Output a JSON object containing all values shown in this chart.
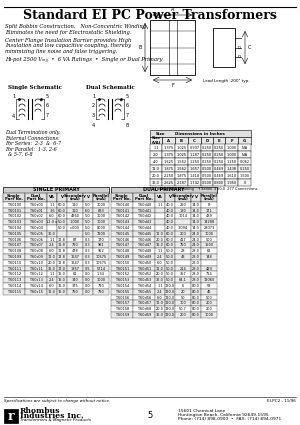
{
  "title": "Standard EI PC Power Transformers",
  "bg_color": "#ffffff",
  "subtitle_lines": [
    "Split Bobbin Construction,   Non-Concentric Winding",
    "Eliminates the need for Electrostatic Shielding.",
    "Center Flange Insulation Barrier provides High",
    "Insulation and low capacitive coupling, thereby",
    "minimizing line noise and false triggering.",
    "Hi-pot 2500 Vₘⱼⱼ  •  6 VA Ratings  •  Single or Dual Primary"
  ],
  "dual_terminal_note": [
    "Dual Termination only.",
    "External Connections:",
    "For Series:  2-3  &  6-7",
    "For Parallel:  1-3, 2-6",
    "  & 5-7, 6-8"
  ],
  "dim_table_rows": [
    [
      "1.1",
      "1.375",
      "1.025",
      "0.937",
      "0.250",
      "0.250",
      "1.000",
      "N/A"
    ],
    [
      "2.0",
      "1.375",
      "1.025",
      "1.187",
      "0.250",
      "0.250",
      "1.000",
      "N/A"
    ],
    [
      "4.0",
      "1.625",
      "1.562",
      "1.250",
      "0.250",
      "0.250",
      "1.250",
      "0.062"
    ],
    [
      "12.0",
      "1.875",
      "1.562",
      "1.657",
      "0.500",
      "0.469",
      "1.438",
      "0.250"
    ],
    [
      "20.0",
      "2.250",
      "1.875",
      "1.418",
      "0.500",
      "0.469",
      "1.610",
      "1.500"
    ],
    [
      "36.0",
      "2.625",
      "2.187",
      "1.742",
      "0.500",
      "0.800",
      "1.950",
      "0"
    ]
  ],
  "single_data": [
    [
      "T-60100",
      "T-60s00",
      "1.1",
      "60.0",
      "110",
      "5.0",
      "1000"
    ],
    [
      "T-60101",
      "T-60s01",
      "3.6",
      "60.0",
      "110",
      "6.0",
      "833"
    ],
    [
      "T-60102",
      "T-60s02",
      "6.0",
      "60.0",
      "4960",
      "5.0",
      "1000"
    ],
    [
      "T-60103",
      "T-60s03",
      "12.0 a",
      "50.0",
      "1.000",
      "5.0",
      "1000"
    ],
    [
      "T-60104",
      "T-60s04",
      "",
      "50.0",
      "c.000",
      "5.0",
      "8000"
    ],
    [
      "T-60105",
      "T-60s05",
      "36.0",
      "",
      "",
      "5.0",
      "7200"
    ],
    [
      "T-60106",
      "T-60s06",
      "1.1",
      "12.8",
      "87",
      "0.3",
      "170"
    ],
    [
      "T-60107",
      "T-60s07",
      "2.4",
      "12.8",
      "760",
      "0.3",
      "981"
    ],
    [
      "T-60108",
      "T-60s08",
      "6.0",
      "12.8",
      "478",
      "0.3",
      "952"
    ],
    [
      "T-60109",
      "T-60s09",
      "12.0",
      "12.8",
      "1647",
      "0.3",
      "10575"
    ],
    [
      "T-60110",
      "T-60s10",
      "20.0",
      "12.8",
      "1647",
      "0.3",
      "10575"
    ],
    [
      "T-60111",
      "T-60s11",
      "36.0",
      "17.0",
      "1857",
      "0.5",
      "5714"
    ],
    [
      "T-60112",
      "T-60s12",
      "1.1",
      "16.0",
      "61",
      "0.0",
      "1.34"
    ],
    [
      "T-60113",
      "T-60s13",
      "2.4",
      "16.0",
      "140",
      "0.0",
      "1000"
    ],
    [
      "T-60114",
      "T-60s14",
      "6.0",
      "16.0",
      "375",
      "0.0",
      "790"
    ],
    [
      "T-60115",
      "T-60s15",
      "12.0",
      "16.0",
      "750",
      "0.0",
      "790"
    ]
  ],
  "dual_data": [
    [
      "T-60140",
      "T-60d40",
      "1.1",
      "40.0",
      "250",
      "14.0",
      "Pr"
    ],
    [
      "T-60141",
      "T-60d41",
      "",
      "40.0",
      "180",
      "14.0",
      "171"
    ],
    [
      "T-60142",
      "T-60d42",
      "",
      "40.0",
      "1014",
      "14.0",
      "439"
    ],
    [
      "T-60143",
      "T-60d43",
      "",
      "40.0",
      "",
      "14.0",
      "14288"
    ],
    [
      "T-60144",
      "T-60d44",
      "",
      "40.0",
      "3.094",
      "14.0",
      "28073"
    ],
    [
      "T-60145",
      "T-60d45",
      "12.0",
      "60.0",
      "200",
      "24.0",
      "1000"
    ],
    [
      "T-60146",
      "T-60d46",
      "20.0",
      "60.0",
      "417",
      "24.0",
      "500"
    ],
    [
      "T-60147",
      "T-60d47",
      "36.0",
      "60.0",
      "750",
      "24.0",
      "1500"
    ],
    [
      "T-60148",
      "T-60d48",
      "1.1",
      "50.0",
      "23",
      "28.0",
      "61"
    ],
    [
      "T-60149",
      "T-60d49",
      "2.4",
      "50.0",
      "43",
      "28.0",
      "148"
    ],
    [
      "T-60150",
      "T-60d50",
      "6.0",
      "50.0",
      "",
      "28.0",
      ""
    ],
    [
      "T-60151",
      "T-60d51",
      "12.0",
      "50.0",
      "214",
      "28.0",
      "429"
    ],
    [
      "T-60152",
      "T-60d52",
      "20.0",
      "50.0",
      "357",
      "28.0",
      "714"
    ],
    [
      "T-60153",
      "T-60d53",
      "36.0",
      "50.0",
      "64.1",
      "28.0",
      "12060"
    ],
    [
      "T-60154",
      "T-60d54",
      "1.1",
      "120.0",
      "6",
      "80.0",
      "58"
    ],
    [
      "T-60155",
      "T-60d55",
      "2.4",
      "120.0",
      "20",
      "80.0",
      "45"
    ],
    [
      "T-60156",
      "T-60d56",
      "6.0",
      "120.0",
      "50",
      "80.0",
      "500"
    ],
    [
      "T-60157",
      "T-60d57",
      "12.0",
      "120.0",
      "100",
      "80.0",
      "200"
    ],
    [
      "T-60158",
      "T-60d58",
      "20.0",
      "120.0",
      "50.7",
      "80.0",
      "200"
    ],
    [
      "T-60159",
      "T-60d59",
      "36.0",
      "120.0",
      "200",
      "80.0",
      "1000"
    ]
  ],
  "footer_page": "5",
  "footer_note": "Specifications are subject to change without notice.",
  "footer_partno": "EI-PC2 - 11/96"
}
